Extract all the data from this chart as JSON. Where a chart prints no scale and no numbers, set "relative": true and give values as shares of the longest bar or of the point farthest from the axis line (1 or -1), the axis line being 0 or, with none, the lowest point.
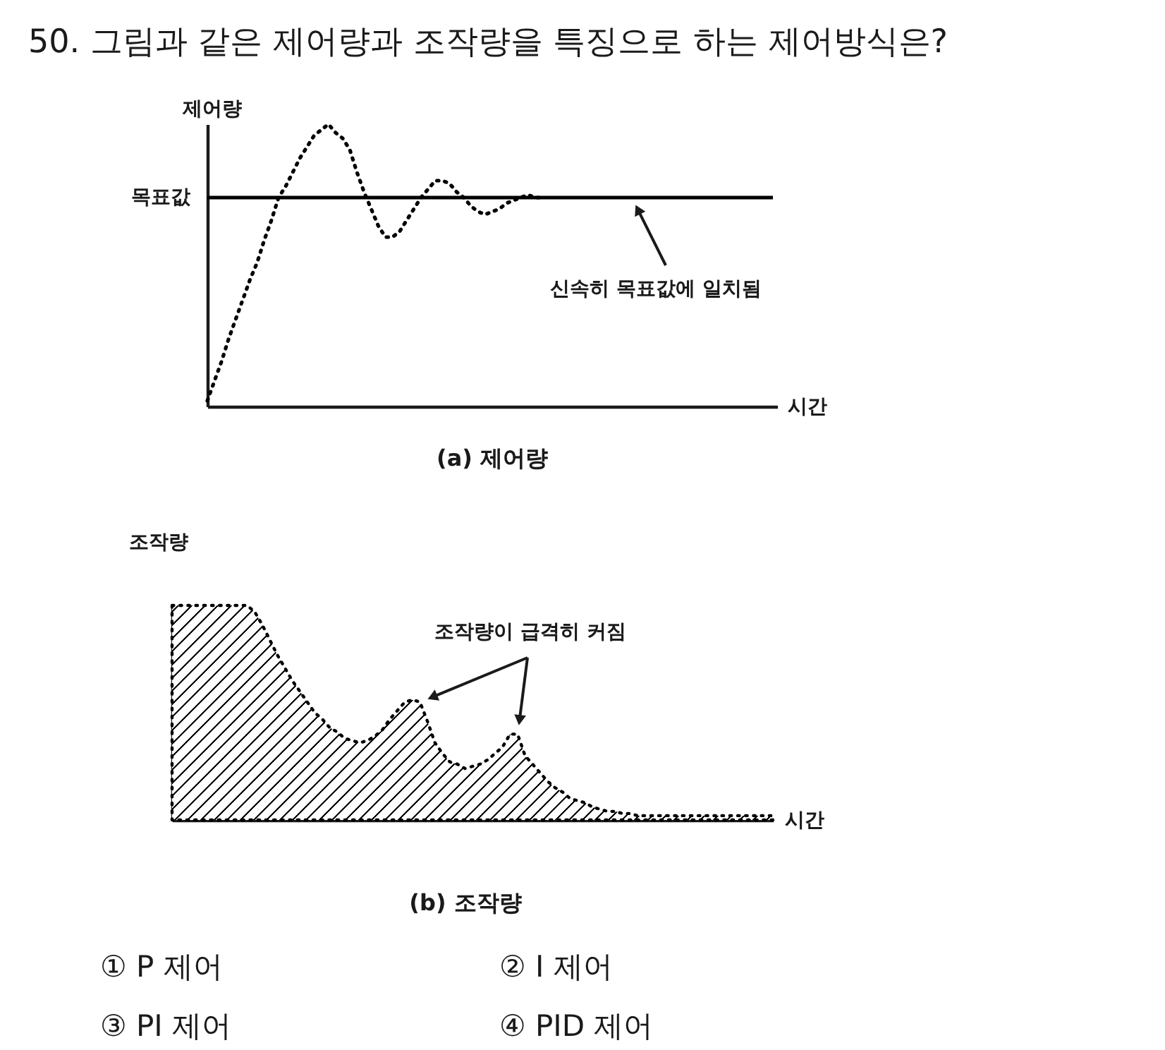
{
  "chart_data": [
    {
      "type": "other",
      "title": "50. 그림과 같은 제어량과 조작량을 특징으로 하는 제어방식은?"
    },
    {
      "type": "line",
      "title": "(a) 제어량",
      "xlabel": "시간",
      "ylabel": "제어량",
      "relative": true,
      "color": "#000000",
      "line_style": "dotted",
      "categories": [
        null,
        null,
        null,
        null,
        null,
        null,
        null,
        null,
        null,
        null,
        null,
        null,
        null,
        null,
        null,
        null,
        null,
        null,
        null,
        null,
        null,
        null,
        null,
        null,
        null,
        null,
        null,
        null,
        null,
        null,
        null,
        null,
        null,
        null,
        null,
        null,
        null,
        null,
        null,
        null,
        null,
        null,
        null,
        null,
        null,
        null,
        null,
        null,
        null,
        null,
        null,
        null,
        null,
        null,
        null,
        null,
        null,
        null,
        null,
        null,
        null,
        null,
        null,
        null,
        null,
        null,
        null,
        null,
        null,
        null,
        null,
        null,
        null,
        null,
        null,
        null,
        null,
        null,
        null,
        null,
        null
      ],
      "values": [
        0.02,
        0.09,
        0.16,
        0.24,
        0.31,
        0.38,
        0.45,
        0.51,
        0.59,
        0.66,
        0.74,
        0.78,
        0.83,
        0.88,
        0.92,
        0.96,
        0.98,
        1.0,
        0.97,
        0.95,
        0.91,
        0.83,
        0.76,
        0.7,
        0.64,
        0.6,
        0.6,
        0.62,
        0.66,
        0.7,
        0.74,
        0.77,
        0.8,
        0.8,
        0.79,
        0.76,
        0.74,
        0.71,
        0.69,
        0.68,
        0.69,
        0.7,
        0.72,
        0.73,
        0.74,
        0.75,
        0.74,
        0.74,
        null,
        null,
        null,
        null,
        null,
        null,
        null,
        null,
        null,
        null,
        null,
        null,
        null,
        null,
        null,
        null,
        null,
        null,
        null,
        null,
        null,
        null,
        null,
        null,
        null,
        null,
        null,
        null,
        null,
        null,
        null,
        null,
        null
      ],
      "ref_lines": [
        {
          "axis": "y",
          "value": 0.74,
          "label": "목표값",
          "color": "#000000",
          "line_style": "solid"
        }
      ],
      "annotations": [
        "신속히 목표값에 일치됨"
      ]
    },
    {
      "type": "area",
      "title": "(b) 조작량",
      "xlabel": "시간",
      "ylabel": "조작량",
      "relative": true,
      "color": "#000000",
      "line_style": "dotted",
      "categories": [
        null,
        null,
        null,
        null,
        null,
        null,
        null,
        null,
        null,
        null,
        null,
        null,
        null,
        null,
        null,
        null,
        null,
        null,
        null,
        null,
        null,
        null,
        null,
        null,
        null,
        null,
        null,
        null,
        null,
        null,
        null,
        null,
        null,
        null,
        null,
        null,
        null,
        null,
        null,
        null,
        null,
        null,
        null,
        null,
        null,
        null,
        null,
        null,
        null,
        null,
        null,
        null,
        null,
        null,
        null,
        null,
        null,
        null,
        null,
        null,
        null,
        null,
        null,
        null,
        null,
        null,
        null,
        null,
        null,
        null,
        null,
        null,
        null,
        null,
        null,
        null,
        null,
        null,
        null,
        null,
        null
      ],
      "values": [
        1.0,
        1.0,
        1.0,
        1.0,
        1.0,
        1.0,
        1.0,
        1.0,
        1.0,
        1.0,
        1.0,
        0.97,
        0.91,
        0.84,
        0.77,
        0.71,
        0.65,
        0.6,
        0.55,
        0.5,
        0.47,
        0.43,
        0.41,
        0.38,
        0.37,
        0.36,
        0.37,
        0.39,
        0.42,
        0.47,
        0.51,
        0.55,
        0.56,
        0.55,
        0.46,
        0.36,
        0.31,
        0.27,
        0.26,
        0.24,
        0.25,
        0.26,
        0.28,
        0.31,
        0.34,
        0.4,
        0.4,
        0.3,
        0.26,
        0.22,
        0.18,
        0.15,
        0.13,
        0.1,
        0.09,
        0.08,
        0.06,
        0.05,
        0.04,
        0.04,
        0.03,
        0.03,
        0.02,
        0.02,
        0.02,
        0.02,
        0.02,
        0.02,
        0.02,
        0.02,
        0.02,
        0.02,
        0.02,
        0.02,
        0.02,
        0.02,
        0.02,
        0.02,
        0.02,
        0.02,
        0.02
      ],
      "annotations": [
        "조작량이 급격히 커짐"
      ]
    },
    {
      "type": "other",
      "annotations": [
        "① P 제어",
        "② I 제어",
        "③ PI 제어",
        "④ PID 제어"
      ]
    }
  ]
}
